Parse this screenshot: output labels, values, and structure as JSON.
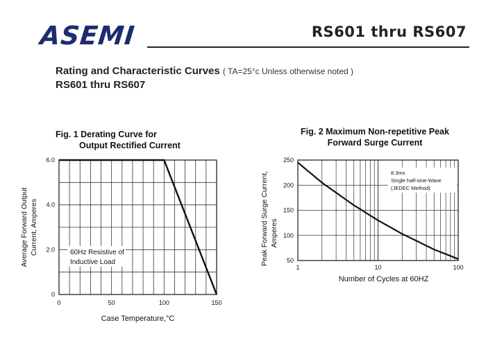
{
  "header": {
    "logo_text": "ASEMI",
    "doc_title": "RS601 thru RS607",
    "heading_main": "Rating and Characteristic Curves",
    "heading_condition": "( TA=25°c Unless otherwise noted )",
    "subheading": "RS601 thru RS607"
  },
  "colors": {
    "logo": "#1d2c6c",
    "curve": "#111111",
    "grid": "#333333"
  },
  "chart_data": [
    {
      "type": "line",
      "title_line1": "Fig. 1 Derating Curve for",
      "title_line2": "Output Rectified Current",
      "xlabel": "Case Temperature,°C",
      "ylabel_line1": "Average Forward Output",
      "ylabel_line2": "Current, Amperes",
      "xlim": [
        0,
        150
      ],
      "ylim": [
        0,
        6.0
      ],
      "xticks": [
        "0",
        "50",
        "100",
        "150"
      ],
      "yticks": [
        "0",
        "2.0",
        "4.0",
        "6.0"
      ],
      "grid": true,
      "annotation_line1": "60Hz Resistive of",
      "annotation_line2": "Inductive Load",
      "series": [
        {
          "x": [
            0,
            100,
            150
          ],
          "y": [
            6.0,
            6.0,
            0.0
          ]
        }
      ]
    },
    {
      "type": "line",
      "title_line1": "Fig. 2 Maximum Non-repetitive Peak",
      "title_line2": "Forward Surge Current",
      "xlabel": "Number of Cycles at 60HZ",
      "ylabel_line1": "Peak Forward Surge Current,",
      "ylabel_line2": "Amperes",
      "xscale": "log",
      "xlim": [
        1,
        100
      ],
      "ylim": [
        50,
        250
      ],
      "xticks": [
        "1",
        "10",
        "100"
      ],
      "yticks": [
        "50",
        "100",
        "150",
        "200",
        "250"
      ],
      "grid": true,
      "legend_line1": "8.3ms",
      "legend_line2": "Single half-sine-Wave",
      "legend_line3": "(JEDEC Method)",
      "series": [
        {
          "x": [
            1,
            2,
            5,
            10,
            20,
            50,
            100
          ],
          "y": [
            245,
            205,
            160,
            130,
            103,
            72,
            53
          ]
        }
      ]
    }
  ]
}
